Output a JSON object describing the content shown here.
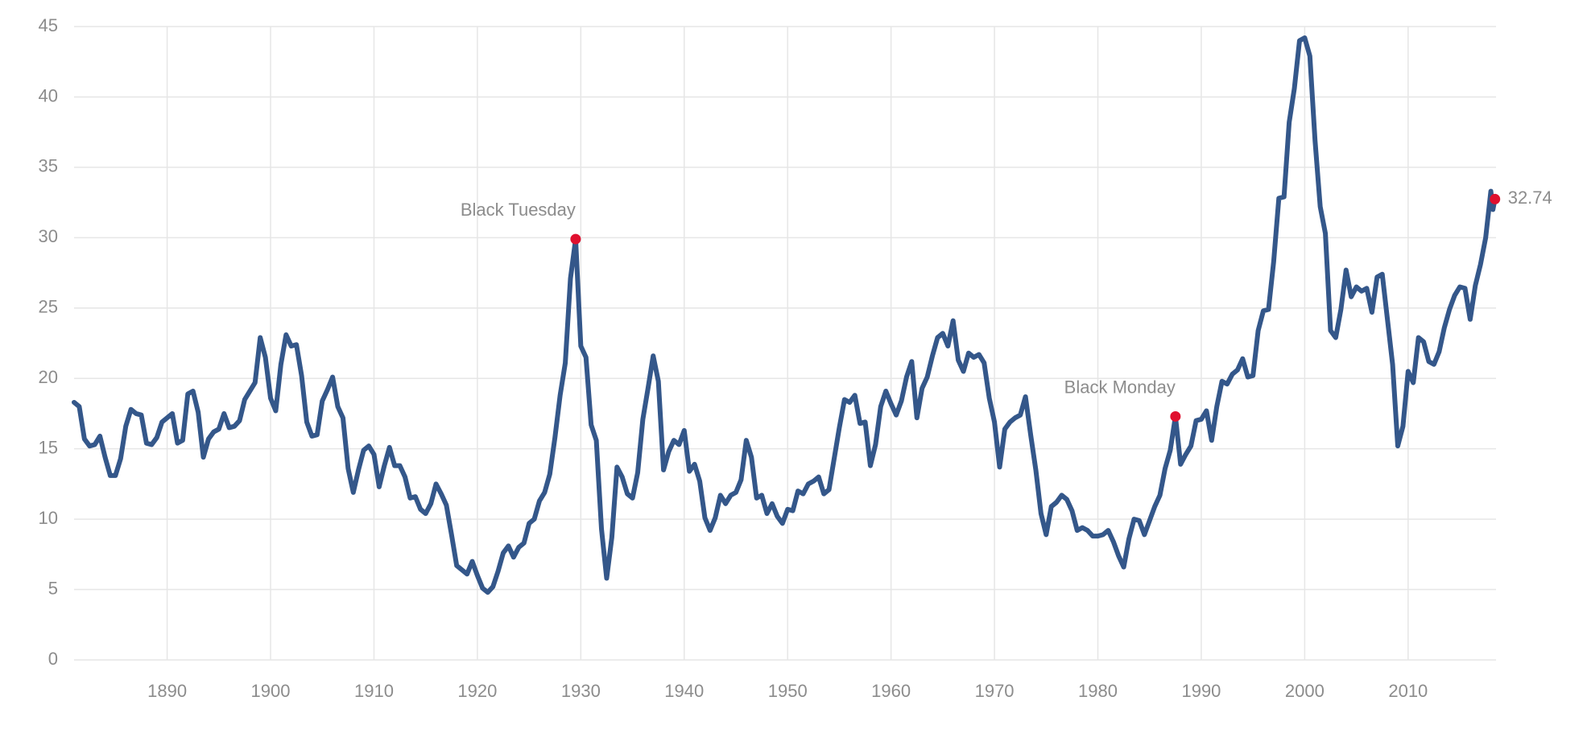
{
  "chart_data": {
    "type": "line",
    "x": [
      1881,
      1881.5,
      1882,
      1882.5,
      1883,
      1883.5,
      1884,
      1884.5,
      1885,
      1885.5,
      1886,
      1886.5,
      1887,
      1887.5,
      1888,
      1888.5,
      1889,
      1889.5,
      1890,
      1890.5,
      1891,
      1891.5,
      1892,
      1892.5,
      1893,
      1893.5,
      1894,
      1894.5,
      1895,
      1895.5,
      1896,
      1896.5,
      1897,
      1897.5,
      1898,
      1898.5,
      1899,
      1899.5,
      1900,
      1900.5,
      1901,
      1901.5,
      1902,
      1902.5,
      1903,
      1903.5,
      1904,
      1904.5,
      1905,
      1905.5,
      1906,
      1906.5,
      1907,
      1907.5,
      1908,
      1908.5,
      1909,
      1909.5,
      1910,
      1910.5,
      1911,
      1911.5,
      1912,
      1912.5,
      1913,
      1913.5,
      1914,
      1914.5,
      1915,
      1915.5,
      1916,
      1916.5,
      1917,
      1917.5,
      1918,
      1918.5,
      1919,
      1919.5,
      1920,
      1920.5,
      1921,
      1921.5,
      1922,
      1922.5,
      1923,
      1923.5,
      1924,
      1924.5,
      1925,
      1925.5,
      1926,
      1926.5,
      1927,
      1927.5,
      1928,
      1928.5,
      1929,
      1929.5,
      1930,
      1930.5,
      1931,
      1931.5,
      1932,
      1932.5,
      1933,
      1933.5,
      1934,
      1934.5,
      1935,
      1935.5,
      1936,
      1936.5,
      1937,
      1937.5,
      1938,
      1938.5,
      1939,
      1939.5,
      1940,
      1940.5,
      1941,
      1941.5,
      1942,
      1942.5,
      1943,
      1943.5,
      1944,
      1944.5,
      1945,
      1945.5,
      1946,
      1946.5,
      1947,
      1947.5,
      1948,
      1948.5,
      1949,
      1949.5,
      1950,
      1950.5,
      1951,
      1951.5,
      1952,
      1952.5,
      1953,
      1953.5,
      1954,
      1954.5,
      1955,
      1955.5,
      1956,
      1956.5,
      1957,
      1957.5,
      1958,
      1958.5,
      1959,
      1959.5,
      1960,
      1960.5,
      1961,
      1961.5,
      1962,
      1962.5,
      1963,
      1963.5,
      1964,
      1964.5,
      1965,
      1965.5,
      1966,
      1966.5,
      1967,
      1967.5,
      1968,
      1968.5,
      1969,
      1969.5,
      1970,
      1970.5,
      1971,
      1971.5,
      1972,
      1972.5,
      1973,
      1973.5,
      1974,
      1974.5,
      1975,
      1975.5,
      1976,
      1976.5,
      1977,
      1977.5,
      1978,
      1978.5,
      1979,
      1979.5,
      1980,
      1980.5,
      1981,
      1981.5,
      1982,
      1982.5,
      1983,
      1983.5,
      1984,
      1984.5,
      1985,
      1985.5,
      1986,
      1986.5,
      1987,
      1987.5,
      1988,
      1988.5,
      1989,
      1989.5,
      1990,
      1990.5,
      1991,
      1991.5,
      1992,
      1992.5,
      1993,
      1993.5,
      1994,
      1994.5,
      1995,
      1995.5,
      1996,
      1996.5,
      1997,
      1997.5,
      1998,
      1998.5,
      1999,
      1999.5,
      2000,
      2000.5,
      2001,
      2001.5,
      2002,
      2002.5,
      2003,
      2003.5,
      2004,
      2004.5,
      2005,
      2005.5,
      2006,
      2006.5,
      2007,
      2007.5,
      2008,
      2008.5,
      2009,
      2009.5,
      2010,
      2010.5,
      2011,
      2011.5,
      2012,
      2012.5,
      2013,
      2013.5,
      2014,
      2014.5,
      2015,
      2015.5,
      2016,
      2016.5,
      2017,
      2017.5,
      2018,
      2018.2,
      2018.4
    ],
    "values": [
      18.3,
      18.0,
      15.7,
      15.2,
      15.3,
      15.9,
      14.4,
      13.1,
      13.1,
      14.3,
      16.6,
      17.8,
      17.5,
      17.4,
      15.4,
      15.3,
      15.8,
      16.9,
      17.2,
      17.5,
      15.4,
      15.6,
      18.9,
      19.1,
      17.6,
      14.4,
      15.7,
      16.2,
      16.4,
      17.5,
      16.5,
      16.6,
      17.0,
      18.5,
      19.1,
      19.7,
      22.9,
      21.5,
      18.6,
      17.7,
      21.0,
      23.1,
      22.3,
      22.4,
      20.2,
      16.9,
      15.9,
      16.0,
      18.4,
      19.2,
      20.1,
      18.0,
      17.2,
      13.6,
      11.9,
      13.5,
      14.9,
      15.2,
      14.6,
      12.3,
      13.8,
      15.1,
      13.8,
      13.8,
      13.0,
      11.5,
      11.6,
      10.7,
      10.4,
      11.1,
      12.5,
      11.8,
      11.0,
      8.9,
      6.7,
      6.4,
      6.1,
      7.0,
      6.0,
      5.1,
      4.8,
      5.2,
      6.3,
      7.6,
      8.1,
      7.3,
      8.0,
      8.3,
      9.7,
      10.0,
      11.3,
      11.9,
      13.2,
      15.8,
      18.8,
      21.1,
      27.1,
      29.9,
      22.3,
      21.5,
      16.7,
      15.6,
      9.3,
      5.8,
      8.7,
      13.7,
      13.0,
      11.8,
      11.5,
      13.3,
      17.1,
      19.3,
      21.6,
      19.8,
      13.5,
      14.8,
      15.6,
      15.3,
      16.3,
      13.4,
      13.9,
      12.7,
      10.1,
      9.2,
      10.1,
      11.7,
      11.1,
      11.7,
      11.9,
      12.8,
      15.6,
      14.4,
      11.5,
      11.7,
      10.4,
      11.1,
      10.2,
      9.7,
      10.7,
      10.6,
      12.0,
      11.8,
      12.5,
      12.7,
      13.0,
      11.8,
      12.1,
      14.3,
      16.5,
      18.5,
      18.3,
      18.8,
      16.8,
      16.9,
      13.8,
      15.3,
      18.0,
      19.1,
      18.2,
      17.4,
      18.4,
      20.1,
      21.2,
      17.2,
      19.3,
      20.1,
      21.6,
      22.9,
      23.2,
      22.3,
      24.1,
      21.3,
      20.5,
      21.8,
      21.5,
      21.7,
      21.1,
      18.6,
      16.9,
      13.7,
      16.4,
      16.9,
      17.2,
      17.4,
      18.7,
      16.0,
      13.5,
      10.4,
      8.9,
      10.9,
      11.2,
      11.7,
      11.4,
      10.6,
      9.2,
      9.4,
      9.2,
      8.8,
      8.8,
      8.9,
      9.2,
      8.4,
      7.4,
      6.6,
      8.6,
      10.0,
      9.9,
      8.9,
      9.9,
      10.9,
      11.7,
      13.6,
      14.9,
      17.3,
      13.9,
      14.6,
      15.2,
      17.0,
      17.1,
      17.7,
      15.6,
      18.0,
      19.8,
      19.6,
      20.3,
      20.6,
      21.4,
      20.1,
      20.2,
      23.4,
      24.8,
      24.9,
      28.3,
      32.8,
      32.9,
      38.2,
      40.6,
      44.0,
      44.2,
      42.9,
      36.9,
      32.2,
      30.3,
      23.4,
      22.9,
      24.9,
      27.7,
      25.8,
      26.5,
      26.2,
      26.4,
      24.7,
      27.2,
      27.4,
      24.2,
      21.0,
      15.2,
      16.6,
      20.5,
      19.7,
      22.9,
      22.6,
      21.2,
      21.0,
      21.9,
      23.6,
      24.9,
      25.9,
      26.5,
      26.4,
      24.2,
      26.6,
      28.1,
      30.0,
      33.3,
      32.0,
      32.74
    ],
    "color": "#34578a",
    "marker_color": "#e0102f",
    "highlight_last": true,
    "annotations": [
      {
        "text": "Black Tuesday",
        "x": 1929.5,
        "y": 29.9
      },
      {
        "text": "Black Monday",
        "x": 1987.5,
        "y": 17.3
      }
    ],
    "xlim": [
      1881,
      2018.5
    ],
    "xticks": [
      1890,
      1900,
      1910,
      1920,
      1930,
      1940,
      1950,
      1960,
      1970,
      1980,
      1990,
      2000,
      2010
    ],
    "ylim": [
      0,
      45
    ],
    "yticks": [
      0,
      5,
      10,
      15,
      20,
      25,
      30,
      35,
      40,
      45
    ],
    "grid": true
  }
}
